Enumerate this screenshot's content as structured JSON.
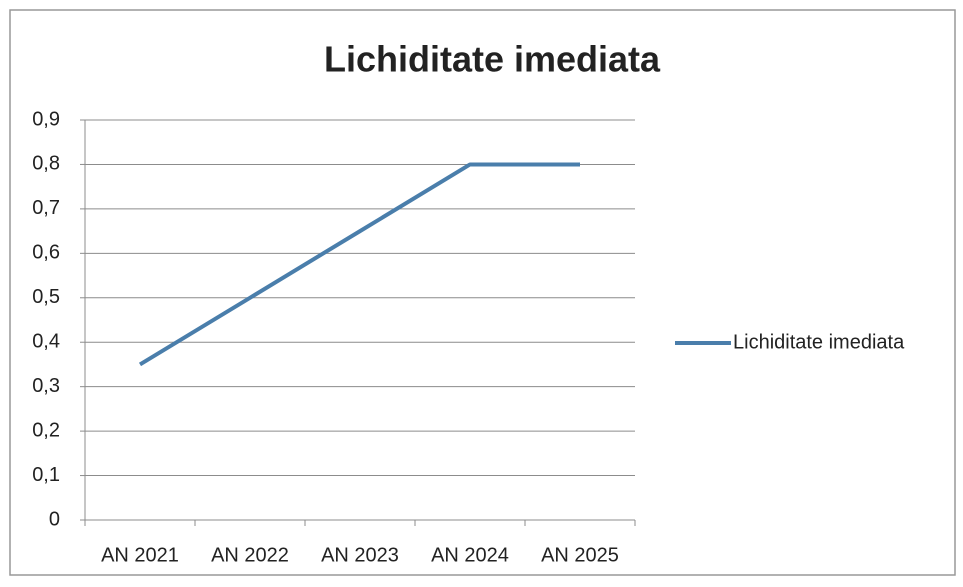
{
  "chart_data": {
    "type": "line",
    "title": "Lichiditate imediata",
    "categories": [
      "AN 2021",
      "AN 2022",
      "AN 2023",
      "AN 2024",
      "AN 2025"
    ],
    "series": [
      {
        "name": "Lichiditate imediata",
        "color": "#4a7eab",
        "values": [
          0.35,
          0.5,
          0.65,
          0.8,
          0.8
        ]
      }
    ],
    "ylim": [
      0,
      0.9
    ],
    "yticks": [
      0,
      {
        "value": 0.1,
        "label": "0,1"
      },
      {
        "value": 0.2,
        "label": "0,2"
      },
      {
        "value": 0.3,
        "label": "0,3"
      },
      {
        "value": 0.4,
        "label": "0,4"
      },
      {
        "value": 0.5,
        "label": "0,5"
      },
      {
        "value": 0.6,
        "label": "0,6"
      },
      {
        "value": 0.7,
        "label": "0,7"
      },
      {
        "value": 0.8,
        "label": "0,8"
      },
      {
        "value": 0.9,
        "label": "0,9"
      }
    ],
    "grid": true,
    "legend": "right"
  }
}
